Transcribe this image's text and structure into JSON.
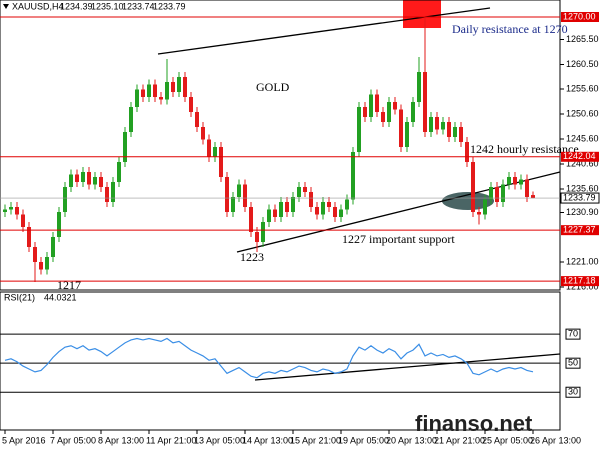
{
  "chart_data": [
    {
      "type": "candlestick",
      "symbol": "XAUUSD,H4",
      "ohlc_labels": [
        "1234.39",
        "1235.10",
        "1233.74",
        "1233.79"
      ],
      "title": "GOLD",
      "annotations": [
        "Daily resistance at 1270",
        "1242 hourly resistance",
        "1227 important support",
        "1223",
        "1217"
      ],
      "categories": [
        "5 Apr 2016",
        null,
        null,
        null,
        null,
        null,
        null,
        null,
        "7 Apr 05:00",
        null,
        null,
        null,
        null,
        null,
        null,
        null,
        "8 Apr 13:00",
        null,
        null,
        null,
        null,
        null,
        null,
        null,
        "11 Apr 21:00",
        null,
        null,
        null,
        null,
        null,
        null,
        null,
        "13 Apr 05:00",
        null,
        null,
        null,
        null,
        null,
        null,
        null,
        "14 Apr 13:00",
        null,
        null,
        null,
        null,
        null,
        null,
        null,
        "15 Apr 21:00",
        null,
        null,
        null,
        null,
        null,
        null,
        null,
        "19 Apr 05:00",
        null,
        null,
        null,
        null,
        null,
        null,
        null,
        "20 Apr 13:00",
        null,
        null,
        null,
        null,
        null,
        null,
        null,
        "21 Apr 21:00",
        null,
        null,
        null,
        null,
        null,
        null,
        null,
        "25 Apr 05:00",
        null,
        null,
        null,
        null,
        null,
        null,
        null,
        "26 Apr 13:00"
      ],
      "open": [
        1231.0,
        1231.5,
        1232.0,
        1230.5,
        1228.0,
        1224.0,
        1221.0,
        1219.5,
        1222.0,
        1226.0,
        1231.0,
        1236.0,
        1238.5,
        1237.0,
        1239.0,
        1236.5,
        1238.0,
        1236.0,
        1233.0,
        1237.0,
        1241.0,
        1247.0,
        1252.0,
        1255.5,
        1254.0,
        1256.5,
        1254.0,
        1253.5,
        1257.0,
        1255.0,
        1258.0,
        1254.0,
        1251.0,
        1248.0,
        1245.5,
        1242.0,
        1244.0,
        1238.0,
        1231.0,
        1234.0,
        1236.5,
        1232.0,
        1227.0,
        1225.0,
        1229.0,
        1231.5,
        1230.0,
        1233.0,
        1231.0,
        1234.0,
        1236.0,
        1235.0,
        1232.0,
        1230.5,
        1233.0,
        1232.0,
        1230.0,
        1231.5,
        1233.5,
        1243.0,
        1252.0,
        1250.0,
        1254.5,
        1251.0,
        1249.0,
        1253.0,
        1251.5,
        1244.0,
        1249.0,
        1253.0,
        1259.0,
        1247.0,
        1250.0,
        1247.5,
        1249.0,
        1246.0,
        1248.0,
        1245.0,
        1241.0,
        1231.0,
        1230.5,
        1233.5,
        1236.0,
        1233.0,
        1236.5,
        1238.0,
        1236.5,
        1237.5,
        1234.39
      ],
      "high": [
        1232.5,
        1233,
        1233,
        1231.5,
        1229,
        1225,
        1222,
        1223,
        1227,
        1232,
        1237,
        1239.5,
        1239.5,
        1240,
        1240,
        1239,
        1239,
        1237,
        1238,
        1242,
        1248,
        1253,
        1256.5,
        1256.5,
        1257.5,
        1257.5,
        1255,
        1261.6,
        1258,
        1259,
        1259,
        1255,
        1252,
        1249,
        1246.5,
        1245,
        1245,
        1239,
        1235,
        1237.5,
        1237.5,
        1233,
        1228,
        1230,
        1232.5,
        1232.5,
        1234,
        1234,
        1235,
        1237,
        1237,
        1236,
        1233,
        1234,
        1234,
        1233,
        1232.5,
        1234.5,
        1244,
        1253,
        1253,
        1255.5,
        1255.5,
        1252,
        1254,
        1254,
        1252.5,
        1250,
        1254,
        1262,
        1270,
        1251,
        1251,
        1250,
        1250,
        1249,
        1249,
        1246,
        1242,
        1232,
        1234.5,
        1237,
        1237,
        1237.5,
        1239,
        1239,
        1238.5,
        1238.5,
        1235.1
      ],
      "low": [
        1230,
        1230.5,
        1229.5,
        1227,
        1223,
        1217,
        1218.5,
        1218.5,
        1221,
        1225,
        1230,
        1235,
        1236,
        1236,
        1235.5,
        1235.5,
        1235,
        1232,
        1232,
        1236,
        1240,
        1246,
        1251,
        1253,
        1253,
        1253,
        1252.5,
        1252.5,
        1254,
        1254,
        1253,
        1250,
        1247,
        1244.5,
        1241,
        1241,
        1237,
        1230,
        1230,
        1233,
        1231,
        1226,
        1223,
        1224,
        1228,
        1229,
        1229,
        1230,
        1230,
        1233,
        1234,
        1231,
        1229.5,
        1229.5,
        1231,
        1229,
        1229,
        1230.5,
        1232.5,
        1242,
        1249,
        1249,
        1250,
        1248,
        1248,
        1250.5,
        1243,
        1243,
        1248,
        1252,
        1246,
        1246,
        1246.5,
        1246.5,
        1245,
        1245,
        1244,
        1240,
        1230,
        1228.5,
        1229.5,
        1232.5,
        1232,
        1232,
        1235.5,
        1235.5,
        1235.5,
        1233,
        1233.74
      ],
      "close": [
        1231.5,
        1232.0,
        1230.5,
        1228.0,
        1224.0,
        1221.0,
        1219.5,
        1222.0,
        1226.0,
        1231.0,
        1236.0,
        1238.5,
        1237.0,
        1239.0,
        1236.5,
        1238.0,
        1236.0,
        1233.0,
        1237.0,
        1241.0,
        1247.0,
        1252.0,
        1255.5,
        1254.0,
        1256.5,
        1254.0,
        1253.5,
        1257.0,
        1255.0,
        1258.0,
        1254.0,
        1251.0,
        1248.0,
        1245.5,
        1242.0,
        1244.0,
        1238.0,
        1231.0,
        1234.0,
        1236.5,
        1232.0,
        1227.0,
        1225.0,
        1229.0,
        1231.5,
        1230.0,
        1233.0,
        1231.0,
        1234.0,
        1236.0,
        1235.0,
        1232.0,
        1230.5,
        1233.0,
        1232.0,
        1230.0,
        1231.5,
        1233.5,
        1243.0,
        1252.0,
        1250.0,
        1254.5,
        1251.0,
        1249.0,
        1253.0,
        1251.5,
        1244.0,
        1249.0,
        1253.0,
        1259.0,
        1247.0,
        1250.0,
        1247.5,
        1249.0,
        1246.0,
        1248.0,
        1245.0,
        1241.0,
        1231.0,
        1230.5,
        1233.5,
        1236.0,
        1233.0,
        1236.5,
        1238.0,
        1236.5,
        1237.5,
        1234.0,
        1233.79
      ],
      "up_color": "#22a022",
      "down_color": "#e31a1a",
      "ylim": [
        1215.4,
        1273.4
      ],
      "yticks": [
        {
          "value": 1265.5,
          "label": "1265.50"
        },
        {
          "value": 1260.5,
          "label": "1260.50"
        },
        {
          "value": 1255.6,
          "label": "1255.60"
        },
        {
          "value": 1250.6,
          "label": "1250.60"
        },
        {
          "value": 1245.6,
          "label": "1245.60"
        },
        {
          "value": 1240.6,
          "label": "1240.60"
        },
        {
          "value": 1235.6,
          "label": "1235.60"
        },
        {
          "value": 1230.9,
          "label": "1230.90"
        },
        {
          "value": 1221,
          "label": "1221.00"
        },
        {
          "value": 1216,
          "label": "1216.00"
        }
      ],
      "hlines": [
        {
          "value": 1270,
          "label": "1270.00"
        },
        1242.04,
        1227.37,
        1217.18
      ],
      "hline_color": "#e00000",
      "grid": false
    },
    {
      "type": "line",
      "title": "RSI(21)",
      "color": "#3a8ee6",
      "values": [
        52,
        53,
        51,
        48,
        46,
        44,
        45,
        49,
        54,
        58,
        61,
        62,
        60,
        62,
        59,
        60,
        58,
        55,
        58,
        61,
        64,
        66,
        67,
        66,
        67,
        66,
        65,
        67,
        64,
        65,
        62,
        59,
        57,
        55,
        52,
        53,
        48,
        43,
        45,
        47,
        44,
        41,
        40,
        43,
        44,
        43,
        45,
        44,
        46,
        48,
        47,
        45,
        44,
        46,
        45,
        43,
        44,
        46,
        55,
        61,
        59,
        62,
        59,
        57,
        60,
        58,
        53,
        57,
        59,
        63,
        55,
        57,
        55,
        56,
        54,
        55,
        53,
        50,
        43,
        42,
        44,
        46,
        44,
        46,
        47,
        46,
        47,
        45,
        44.0321
      ],
      "ylim": [
        4,
        99
      ],
      "yticks": [
        30,
        50,
        70
      ],
      "watermark": "finanso.net"
    }
  ]
}
